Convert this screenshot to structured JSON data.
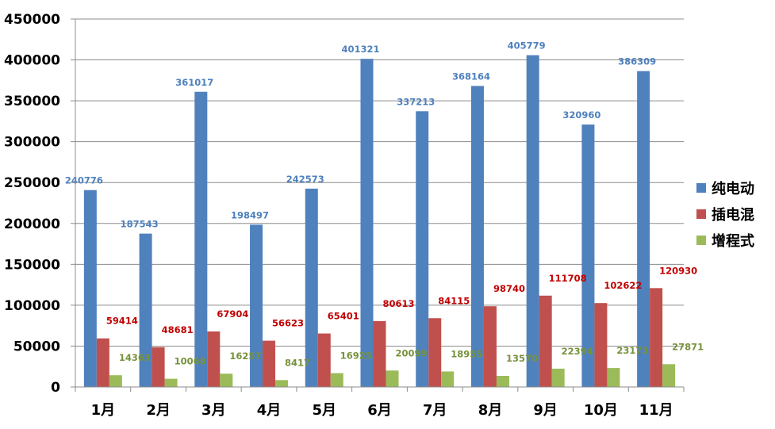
{
  "chart_data": {
    "type": "bar",
    "title": "",
    "xlabel": "",
    "ylabel": "",
    "ylim": [
      0,
      450000
    ],
    "yticks": [
      0,
      50000,
      100000,
      150000,
      200000,
      250000,
      300000,
      350000,
      400000,
      450000
    ],
    "y_tick_labels": [
      "0",
      "50000",
      "100000",
      "150000",
      "200000",
      "250000",
      "300000",
      "350000",
      "400000",
      "450000"
    ],
    "grid": true,
    "legend_position": "right",
    "categories": [
      "1月",
      "2月",
      "3月",
      "4月",
      "5月",
      "6月",
      "7月",
      "8月",
      "9月",
      "10月",
      "11月"
    ],
    "series": [
      {
        "name": "纯电动",
        "color": "#4F81BD",
        "label_color": "#4F81BD",
        "values": [
          240776,
          187543,
          361017,
          198497,
          242573,
          401321,
          337213,
          368164,
          405779,
          320960,
          386309
        ],
        "labels": [
          "240776",
          "187543",
          "361017",
          "198497",
          "242573",
          "401321",
          "337213",
          "368164",
          "405779",
          "320960",
          "386309"
        ]
      },
      {
        "name": "插电混",
        "color": "#C0504D",
        "label_color": "#C00000",
        "values": [
          59414,
          48681,
          67904,
          56623,
          65401,
          80613,
          84115,
          98740,
          111708,
          102622,
          120930
        ],
        "labels": [
          "59414",
          "48681",
          "67904",
          "56623",
          "65401",
          "80613",
          "84115",
          "98740",
          "111708",
          "102622",
          "120930"
        ]
      },
      {
        "name": "增程式",
        "color": "#9BBB59",
        "label_color": "#76923C",
        "values": [
          14363,
          10068,
          16257,
          8417,
          16925,
          20099,
          18955,
          13570,
          22394,
          23173,
          27871
        ],
        "labels": [
          "14363",
          "10068",
          "16257",
          "8417",
          "16925",
          "20099",
          "18955",
          "13570",
          "22394",
          "23173",
          "27871"
        ]
      }
    ]
  }
}
